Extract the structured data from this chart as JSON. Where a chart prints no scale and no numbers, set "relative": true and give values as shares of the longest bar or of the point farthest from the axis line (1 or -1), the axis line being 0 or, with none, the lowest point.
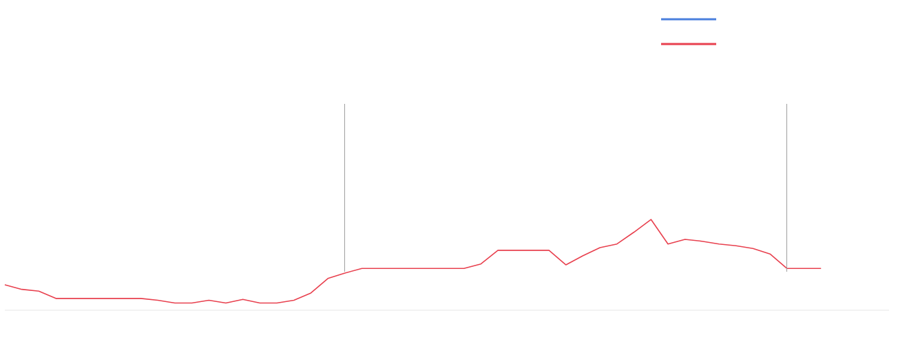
{
  "chart_data": {
    "type": "line",
    "relative": true,
    "categories": [
      null,
      null,
      null,
      null,
      null,
      null,
      null,
      null,
      null,
      null,
      null,
      null,
      null,
      null,
      null,
      null,
      null,
      null,
      null,
      null,
      null,
      null,
      null,
      null,
      null,
      null,
      null,
      null,
      null,
      null,
      null,
      null,
      null,
      null,
      null,
      null,
      null,
      null,
      null,
      null,
      null,
      null,
      null,
      null,
      null,
      null,
      null,
      null,
      null,
      null,
      null,
      null,
      null
    ],
    "series": [
      {
        "color": "#4a7fdd",
        "values": [
          null,
          null,
          null,
          null,
          null,
          null,
          null,
          null,
          null,
          null,
          null,
          null,
          null,
          null,
          null,
          null,
          null,
          null,
          null,
          null,
          null,
          null,
          null,
          null,
          null,
          null,
          null,
          null,
          null,
          null,
          null,
          null,
          null,
          null,
          null,
          null,
          null,
          null,
          null,
          null,
          null,
          null,
          null,
          null,
          null,
          null,
          null,
          null,
          null,
          null,
          null,
          null,
          null
        ]
      },
      {
        "color": "#e8404e",
        "values": [
          0.28,
          0.23,
          0.21,
          0.13,
          0.13,
          0.13,
          0.13,
          0.13,
          0.13,
          0.11,
          0.08,
          0.08,
          0.11,
          0.08,
          0.12,
          0.08,
          0.08,
          0.11,
          0.19,
          0.35,
          0.41,
          0.46,
          0.46,
          0.46,
          0.46,
          0.46,
          0.46,
          0.46,
          0.51,
          0.66,
          0.66,
          0.66,
          0.66,
          0.5,
          0.6,
          0.69,
          0.73,
          0.86,
          1,
          0.73,
          0.78,
          0.76,
          0.73,
          0.71,
          0.68,
          0.62,
          0.46,
          0.46,
          0.46,
          null,
          null,
          null,
          null
        ]
      }
    ],
    "marker": "none"
  }
}
